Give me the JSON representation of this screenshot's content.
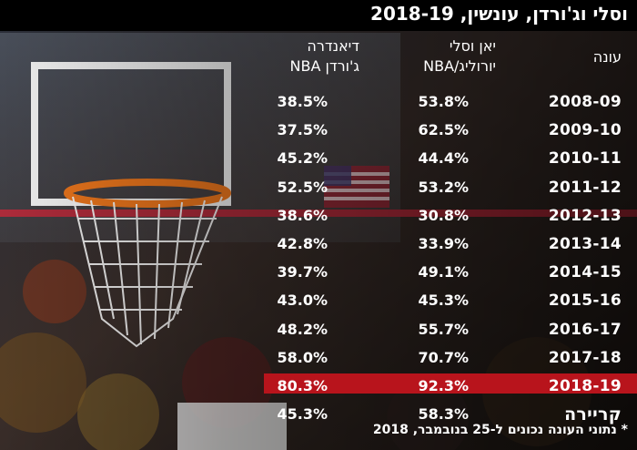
{
  "title": "וסלי וג'ורדן, עונשין, 2018-19",
  "footnote": "* נתוני העונה נכונים ל-25 בנובמבר, 2018",
  "colors": {
    "highlight": "#b8141c",
    "text": "#ffffff",
    "title_bg": "#000000"
  },
  "chart_data": {
    "type": "table",
    "columns": {
      "season": "עונה",
      "yan": "יאן וסלי יורוליג/NBA",
      "nba": "דיאנדרה ג'ורדן NBA"
    },
    "rows": [
      {
        "season": "2008-09",
        "yan": "53.8%",
        "nba": "38.5%"
      },
      {
        "season": "2009-10",
        "yan": "62.5%",
        "nba": "37.5%"
      },
      {
        "season": "2010-11",
        "yan": "44.4%",
        "nba": "45.2%"
      },
      {
        "season": "2011-12",
        "yan": "53.2%",
        "nba": "52.5%"
      },
      {
        "season": "2012-13",
        "yan": "30.8%",
        "nba": "38.6%"
      },
      {
        "season": "2013-14",
        "yan": "33.9%",
        "nba": "42.8%"
      },
      {
        "season": "2014-15",
        "yan": "49.1%",
        "nba": "39.7%"
      },
      {
        "season": "2015-16",
        "yan": "45.3%",
        "nba": "43.0%"
      },
      {
        "season": "2016-17",
        "yan": "55.7%",
        "nba": "48.2%"
      },
      {
        "season": "2017-18",
        "yan": "70.7%",
        "nba": "58.0%"
      },
      {
        "season": "2018-19",
        "yan": "92.3%",
        "nba": "80.3%",
        "highlight": true
      },
      {
        "season": "קריירה",
        "yan": "58.3%",
        "nba": "45.3%",
        "career": true
      }
    ]
  }
}
